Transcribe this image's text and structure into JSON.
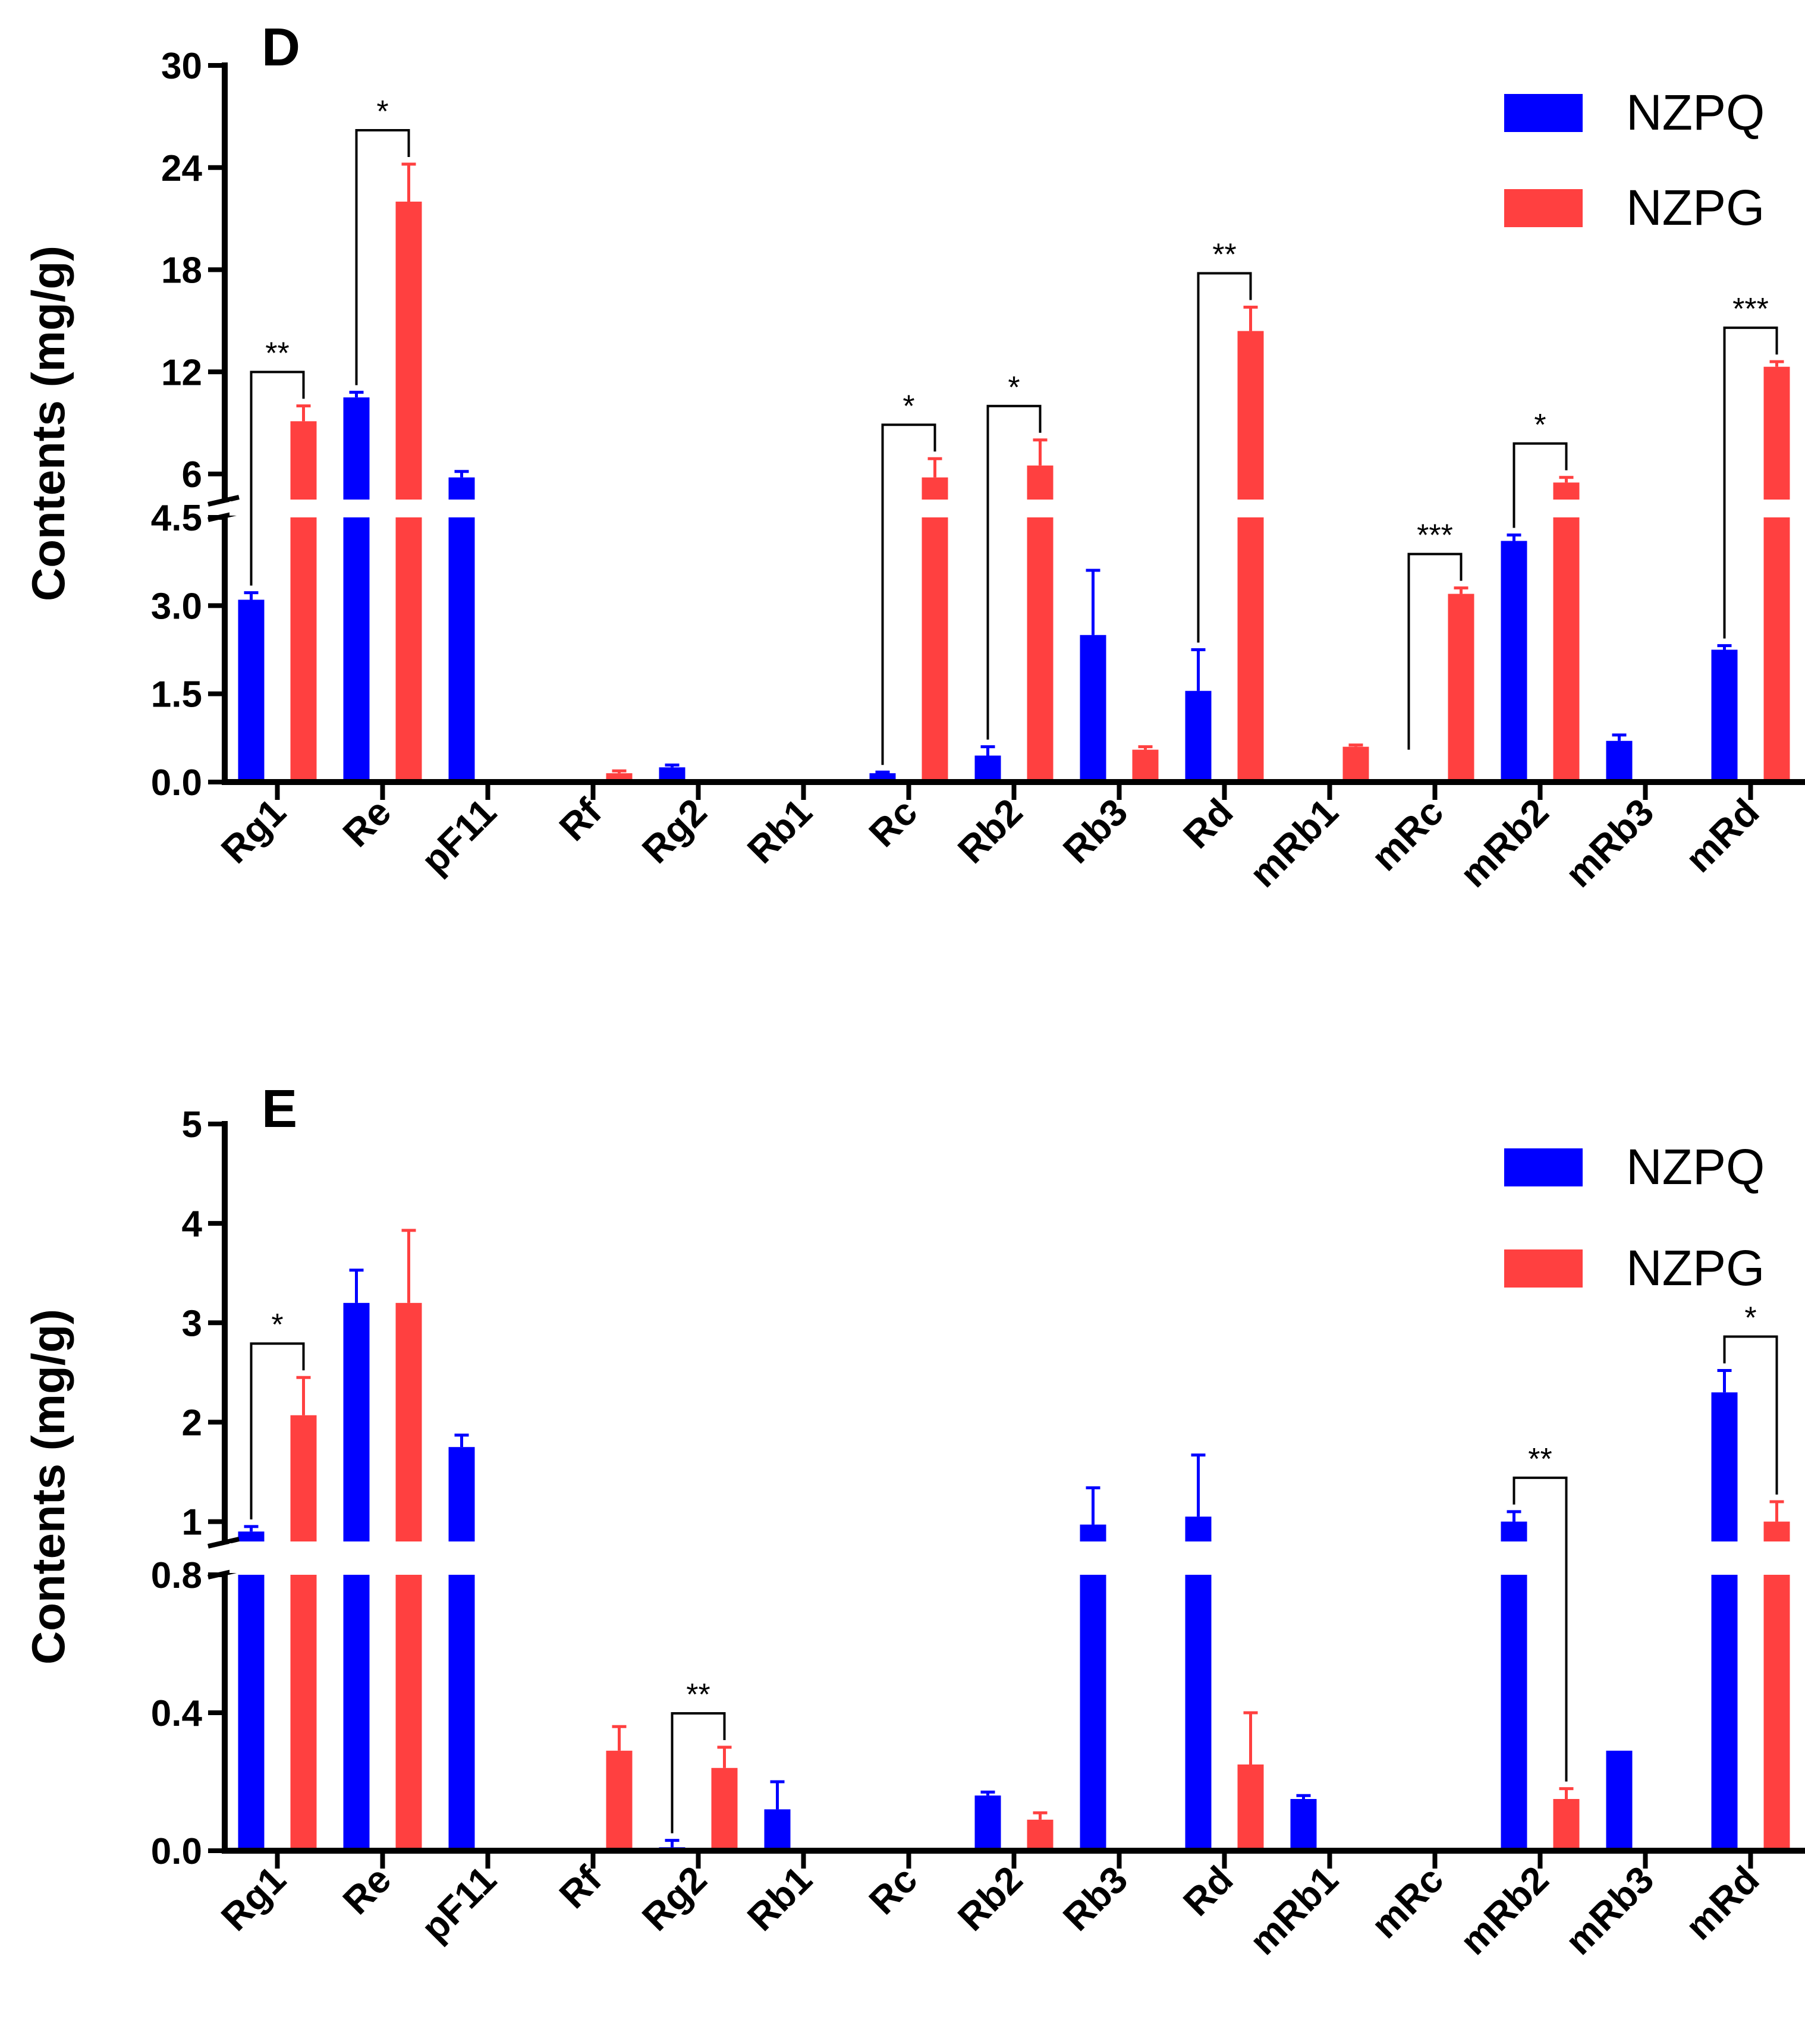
{
  "colors": {
    "NZPQ": "#0000ff",
    "NZPG": "#ff4040"
  },
  "chart_data": [
    {
      "type": "bar",
      "panel_label": "D",
      "ylabel": "Contents (mg/g)",
      "categories": [
        "Rg1",
        "Re",
        "pF11",
        "Rf",
        "Rg2",
        "Rb1",
        "Rc",
        "Rb2",
        "Rb3",
        "Rd",
        "mRb1",
        "mRc",
        "mRb2",
        "mRb3",
        "mRd"
      ],
      "y_break": {
        "lower_range": [
          0,
          4.5
        ],
        "upper_range": [
          4.5,
          30
        ]
      },
      "lower_ticks": [
        "0.0",
        "1.5",
        "3.0",
        "4.5"
      ],
      "upper_ticks": [
        "6",
        "12",
        "18",
        "24",
        "30"
      ],
      "legend": [
        "NZPQ",
        "NZPG"
      ],
      "series": [
        {
          "name": "NZPQ",
          "values": [
            3.1,
            10.5,
            5.8,
            0,
            0.25,
            0,
            0.15,
            0.45,
            2.5,
            1.55,
            0,
            0,
            4.1,
            0.7,
            2.25
          ],
          "errors": [
            0.12,
            0.3,
            0.35,
            0,
            0.04,
            0,
            0.02,
            0.15,
            1.1,
            0.7,
            0,
            0,
            0.1,
            0.1,
            0.07
          ]
        },
        {
          "name": "NZPG",
          "values": [
            9.1,
            22.0,
            0,
            0.15,
            0,
            0,
            5.8,
            6.5,
            0.55,
            14.4,
            0.6,
            3.2,
            5.5,
            0,
            12.3
          ],
          "errors": [
            0.9,
            2.2,
            0,
            0.04,
            0,
            0,
            1.1,
            1.5,
            0.05,
            1.4,
            0.03,
            0.1,
            0.3,
            0,
            0.3
          ]
        }
      ],
      "significance": [
        {
          "category": "Rg1",
          "label": "**"
        },
        {
          "category": "Re",
          "label": "*"
        },
        {
          "category": "Rc",
          "label": "*"
        },
        {
          "category": "Rb2",
          "label": "*"
        },
        {
          "category": "Rd",
          "label": "**"
        },
        {
          "category": "mRc",
          "label": "***"
        },
        {
          "category": "mRb2",
          "label": "*"
        },
        {
          "category": "mRd",
          "label": "***"
        }
      ]
    },
    {
      "type": "bar",
      "panel_label": "E",
      "ylabel": "Contents (mg/g)",
      "categories": [
        "Rg1",
        "Re",
        "pF11",
        "Rf",
        "Rg2",
        "Rb1",
        "Rc",
        "Rb2",
        "Rb3",
        "Rd",
        "mRb1",
        "mRc",
        "mRb2",
        "mRb3",
        "mRd"
      ],
      "y_break": {
        "lower_range": [
          0,
          0.8
        ],
        "upper_range": [
          0.8,
          5
        ]
      },
      "lower_ticks": [
        "0.0",
        "0.4",
        "0.8"
      ],
      "upper_ticks": [
        "1",
        "2",
        "3",
        "4",
        "5"
      ],
      "legend": [
        "NZPQ",
        "NZPG"
      ],
      "series": [
        {
          "name": "NZPQ",
          "values": [
            0.9,
            3.2,
            1.75,
            0,
            0.01,
            0.12,
            0,
            0.16,
            0.97,
            1.05,
            0.15,
            0,
            1.0,
            0.29,
            2.3
          ],
          "errors": [
            0.05,
            0.33,
            0.12,
            0,
            0.02,
            0.08,
            0,
            0.01,
            0.37,
            0.62,
            0.01,
            0,
            0.1,
            0,
            0.22
          ]
        },
        {
          "name": "NZPG",
          "values": [
            2.07,
            3.2,
            0,
            0.29,
            0.24,
            0,
            0,
            0.09,
            0,
            0.25,
            0,
            0,
            0.15,
            0,
            1.0
          ],
          "errors": [
            0.38,
            0.73,
            0,
            0.07,
            0.06,
            0,
            0,
            0.02,
            0,
            0.15,
            0,
            0,
            0.03,
            0,
            0.2
          ]
        }
      ],
      "significance": [
        {
          "category": "Rg1",
          "label": "*"
        },
        {
          "category": "Rg2",
          "label": "**"
        },
        {
          "category": "mRb2",
          "label": "**"
        },
        {
          "category": "mRd",
          "label": "*"
        }
      ]
    }
  ]
}
